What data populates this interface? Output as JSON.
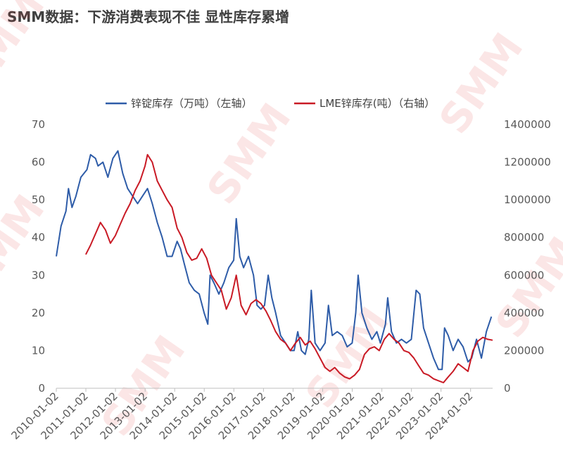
{
  "title": "SMM数据：下游消费表现不佳 显性库存累增",
  "watermark": "SMM",
  "chart_data": {
    "type": "line",
    "legend_position": "top",
    "grid": false,
    "x_range": [
      "2010-01-02",
      "2024-09-30"
    ],
    "x_tick_labels": [
      "2010-01-02",
      "2011-01-02",
      "2012-01-02",
      "2013-01-02",
      "2014-01-02",
      "2015-01-02",
      "2016-01-02",
      "2017-01-02",
      "2018-01-02",
      "2019-01-02",
      "2020-01-02",
      "2021-01-02",
      "2022-01-02",
      "2023-01-02",
      "2024-01-02"
    ],
    "y_left": {
      "range": [
        0,
        70
      ],
      "ticks": [
        "0",
        "10",
        "20",
        "30",
        "40",
        "50",
        "60",
        "70"
      ]
    },
    "y_right": {
      "range": [
        0,
        1400000
      ],
      "ticks": [
        "0",
        "200000",
        "400000",
        "600000",
        "800000",
        "1000000",
        "1200000",
        "1400000"
      ]
    },
    "series": [
      {
        "name": "锌锭库存（万吨）（左轴）",
        "axis": "left",
        "color": "#2e5ca8",
        "points": [
          [
            "2010-01-02",
            35
          ],
          [
            "2010-03-01",
            43
          ],
          [
            "2010-05-01",
            47
          ],
          [
            "2010-06-01",
            53
          ],
          [
            "2010-07-15",
            48
          ],
          [
            "2010-09-01",
            51
          ],
          [
            "2010-11-01",
            56
          ],
          [
            "2011-01-15",
            58
          ],
          [
            "2011-03-01",
            62
          ],
          [
            "2011-05-01",
            61
          ],
          [
            "2011-06-01",
            59
          ],
          [
            "2011-08-01",
            60
          ],
          [
            "2011-10-01",
            56
          ],
          [
            "2011-12-01",
            61
          ],
          [
            "2012-02-01",
            63
          ],
          [
            "2012-04-01",
            57
          ],
          [
            "2012-06-01",
            53
          ],
          [
            "2012-08-01",
            51
          ],
          [
            "2012-10-01",
            49
          ],
          [
            "2012-12-01",
            51
          ],
          [
            "2013-02-01",
            53
          ],
          [
            "2013-04-01",
            49
          ],
          [
            "2013-06-01",
            44
          ],
          [
            "2013-08-01",
            40
          ],
          [
            "2013-10-01",
            35
          ],
          [
            "2013-12-01",
            35
          ],
          [
            "2014-02-01",
            39
          ],
          [
            "2014-03-15",
            37
          ],
          [
            "2014-05-01",
            33
          ],
          [
            "2014-07-01",
            28
          ],
          [
            "2014-09-01",
            26
          ],
          [
            "2014-11-01",
            25
          ],
          [
            "2015-01-01",
            20
          ],
          [
            "2015-02-15",
            17
          ],
          [
            "2015-03-15",
            30
          ],
          [
            "2015-05-01",
            28
          ],
          [
            "2015-07-01",
            25
          ],
          [
            "2015-09-01",
            28
          ],
          [
            "2015-11-01",
            32
          ],
          [
            "2016-01-01",
            34
          ],
          [
            "2016-02-01",
            45
          ],
          [
            "2016-03-15",
            35
          ],
          [
            "2016-05-01",
            32
          ],
          [
            "2016-07-01",
            35
          ],
          [
            "2016-09-01",
            30
          ],
          [
            "2016-10-15",
            22
          ],
          [
            "2016-12-01",
            21
          ],
          [
            "2017-01-15",
            22
          ],
          [
            "2017-03-01",
            30
          ],
          [
            "2017-04-15",
            24
          ],
          [
            "2017-06-01",
            20
          ],
          [
            "2017-08-01",
            14
          ],
          [
            "2017-10-01",
            12
          ],
          [
            "2017-12-01",
            10
          ],
          [
            "2018-01-15",
            10
          ],
          [
            "2018-03-01",
            15
          ],
          [
            "2018-04-15",
            10
          ],
          [
            "2018-06-01",
            9
          ],
          [
            "2018-07-15",
            13
          ],
          [
            "2018-08-15",
            26
          ],
          [
            "2018-10-01",
            12
          ],
          [
            "2018-12-01",
            10
          ],
          [
            "2019-02-01",
            12
          ],
          [
            "2019-03-15",
            22
          ],
          [
            "2019-05-01",
            14
          ],
          [
            "2019-07-01",
            15
          ],
          [
            "2019-09-01",
            14
          ],
          [
            "2019-11-01",
            11
          ],
          [
            "2020-01-01",
            12
          ],
          [
            "2020-02-15",
            20
          ],
          [
            "2020-03-15",
            30
          ],
          [
            "2020-05-01",
            20
          ],
          [
            "2020-07-01",
            16
          ],
          [
            "2020-09-01",
            13
          ],
          [
            "2020-11-01",
            15
          ],
          [
            "2020-12-15",
            12
          ],
          [
            "2021-02-15",
            17
          ],
          [
            "2021-03-15",
            24
          ],
          [
            "2021-05-01",
            15
          ],
          [
            "2021-07-01",
            12
          ],
          [
            "2021-09-01",
            13
          ],
          [
            "2021-11-01",
            12
          ],
          [
            "2022-01-01",
            13
          ],
          [
            "2022-03-01",
            26
          ],
          [
            "2022-04-15",
            25
          ],
          [
            "2022-06-01",
            16
          ],
          [
            "2022-08-01",
            12
          ],
          [
            "2022-10-01",
            8
          ],
          [
            "2022-12-01",
            5
          ],
          [
            "2023-01-15",
            5
          ],
          [
            "2023-02-15",
            16
          ],
          [
            "2023-04-01",
            14
          ],
          [
            "2023-06-01",
            10
          ],
          [
            "2023-08-01",
            13
          ],
          [
            "2023-10-01",
            11
          ],
          [
            "2023-12-01",
            7
          ],
          [
            "2024-01-15",
            8
          ],
          [
            "2024-03-15",
            13
          ],
          [
            "2024-05-15",
            8
          ],
          [
            "2024-07-15",
            15
          ],
          [
            "2024-09-15",
            19
          ]
        ]
      },
      {
        "name": "LME锌库存(吨）（右轴）",
        "axis": "right",
        "color": "#c91a25",
        "points": [
          [
            "2011-01-01",
            710000
          ],
          [
            "2011-03-01",
            760000
          ],
          [
            "2011-05-01",
            820000
          ],
          [
            "2011-07-01",
            880000
          ],
          [
            "2011-09-01",
            840000
          ],
          [
            "2011-11-01",
            770000
          ],
          [
            "2012-01-01",
            810000
          ],
          [
            "2012-03-01",
            870000
          ],
          [
            "2012-05-01",
            930000
          ],
          [
            "2012-07-01",
            980000
          ],
          [
            "2012-09-01",
            1050000
          ],
          [
            "2012-11-01",
            1100000
          ],
          [
            "2013-01-01",
            1180000
          ],
          [
            "2013-02-01",
            1240000
          ],
          [
            "2013-04-01",
            1200000
          ],
          [
            "2013-06-01",
            1100000
          ],
          [
            "2013-08-01",
            1050000
          ],
          [
            "2013-10-01",
            1000000
          ],
          [
            "2013-12-01",
            960000
          ],
          [
            "2014-02-01",
            850000
          ],
          [
            "2014-04-01",
            800000
          ],
          [
            "2014-06-01",
            720000
          ],
          [
            "2014-08-01",
            680000
          ],
          [
            "2014-10-01",
            690000
          ],
          [
            "2014-12-01",
            740000
          ],
          [
            "2015-02-01",
            690000
          ],
          [
            "2015-04-01",
            600000
          ],
          [
            "2015-06-01",
            560000
          ],
          [
            "2015-08-01",
            520000
          ],
          [
            "2015-10-01",
            420000
          ],
          [
            "2015-12-01",
            480000
          ],
          [
            "2016-02-01",
            600000
          ],
          [
            "2016-04-01",
            440000
          ],
          [
            "2016-06-01",
            390000
          ],
          [
            "2016-08-01",
            450000
          ],
          [
            "2016-10-01",
            470000
          ],
          [
            "2016-12-01",
            450000
          ],
          [
            "2017-02-01",
            410000
          ],
          [
            "2017-04-01",
            360000
          ],
          [
            "2017-06-01",
            300000
          ],
          [
            "2017-08-01",
            260000
          ],
          [
            "2017-10-01",
            240000
          ],
          [
            "2017-12-01",
            200000
          ],
          [
            "2018-02-01",
            240000
          ],
          [
            "2018-04-01",
            270000
          ],
          [
            "2018-06-01",
            230000
          ],
          [
            "2018-08-01",
            250000
          ],
          [
            "2018-10-01",
            210000
          ],
          [
            "2018-12-01",
            160000
          ],
          [
            "2019-02-01",
            110000
          ],
          [
            "2019-04-01",
            90000
          ],
          [
            "2019-06-01",
            110000
          ],
          [
            "2019-08-01",
            80000
          ],
          [
            "2019-10-01",
            60000
          ],
          [
            "2019-12-01",
            50000
          ],
          [
            "2020-02-01",
            70000
          ],
          [
            "2020-04-01",
            100000
          ],
          [
            "2020-06-01",
            180000
          ],
          [
            "2020-08-01",
            210000
          ],
          [
            "2020-10-01",
            220000
          ],
          [
            "2020-12-01",
            200000
          ],
          [
            "2021-02-01",
            260000
          ],
          [
            "2021-04-01",
            290000
          ],
          [
            "2021-06-01",
            260000
          ],
          [
            "2021-08-01",
            240000
          ],
          [
            "2021-10-01",
            200000
          ],
          [
            "2021-12-01",
            190000
          ],
          [
            "2022-02-01",
            160000
          ],
          [
            "2022-04-01",
            120000
          ],
          [
            "2022-06-01",
            80000
          ],
          [
            "2022-08-01",
            70000
          ],
          [
            "2022-10-01",
            50000
          ],
          [
            "2022-12-01",
            40000
          ],
          [
            "2023-02-01",
            30000
          ],
          [
            "2023-04-01",
            60000
          ],
          [
            "2023-06-01",
            90000
          ],
          [
            "2023-08-01",
            130000
          ],
          [
            "2023-10-01",
            110000
          ],
          [
            "2023-12-01",
            90000
          ],
          [
            "2024-02-01",
            200000
          ],
          [
            "2024-04-01",
            250000
          ],
          [
            "2024-06-01",
            270000
          ],
          [
            "2024-08-01",
            260000
          ],
          [
            "2024-09-30",
            255000
          ]
        ]
      }
    ]
  }
}
